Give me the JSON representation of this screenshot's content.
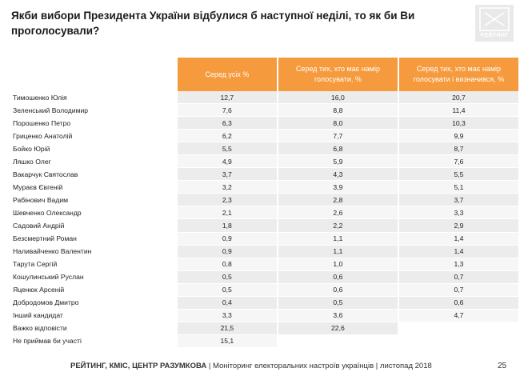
{
  "title": "Якби вибори Президента України відбулися б наступної неділі, то як би Ви проголосували?",
  "logo_text": "РЕЙТИНГ",
  "columns": [
    "Серед усіх %",
    "Серед тих, хто має намір голосувати, %",
    "Серед тих, хто має намір голосувати і визначився, %"
  ],
  "rows": [
    {
      "name": "Тимошенко Юлія",
      "v1": "12,7",
      "v2": "16,0",
      "v3": "20,7"
    },
    {
      "name": "Зеленський Володимир",
      "v1": "7,6",
      "v2": "8,8",
      "v3": "11,4"
    },
    {
      "name": "Порошенко Петро",
      "v1": "6,3",
      "v2": "8,0",
      "v3": "10,3"
    },
    {
      "name": "Гриценко Анатолій",
      "v1": "6,2",
      "v2": "7,7",
      "v3": "9,9"
    },
    {
      "name": "Бойко Юрій",
      "v1": "5,5",
      "v2": "6,8",
      "v3": "8,7"
    },
    {
      "name": "Ляшко Олег",
      "v1": "4,9",
      "v2": "5,9",
      "v3": "7,6"
    },
    {
      "name": "Вакарчук Святослав",
      "v1": "3,7",
      "v2": "4,3",
      "v3": "5,5"
    },
    {
      "name": "Мураєв Євгеній",
      "v1": "3,2",
      "v2": "3,9",
      "v3": "5,1"
    },
    {
      "name": "Рабінович Вадим",
      "v1": "2,3",
      "v2": "2,8",
      "v3": "3,7"
    },
    {
      "name": "Шевченко Олександр",
      "v1": "2,1",
      "v2": "2,6",
      "v3": "3,3"
    },
    {
      "name": "Садовий Андрій",
      "v1": "1,8",
      "v2": "2,2",
      "v3": "2,9"
    },
    {
      "name": "Безсмертний Роман",
      "v1": "0,9",
      "v2": "1,1",
      "v3": "1,4"
    },
    {
      "name": "Наливайченко Валентин",
      "v1": "0,9",
      "v2": "1,1",
      "v3": "1,4"
    },
    {
      "name": "Тарута Сергій",
      "v1": "0,8",
      "v2": "1,0",
      "v3": "1,3"
    },
    {
      "name": "Кошулинський Руслан",
      "v1": "0,5",
      "v2": "0,6",
      "v3": "0,7"
    },
    {
      "name": "Яценюк Арсеній",
      "v1": "0,5",
      "v2": "0,6",
      "v3": "0,7"
    },
    {
      "name": "Добродомов Дмитро",
      "v1": "0,4",
      "v2": "0,5",
      "v3": "0,6"
    },
    {
      "name": "Інший кандидат",
      "v1": "3,3",
      "v2": "3,6",
      "v3": "4,7"
    },
    {
      "name": "Важко відповісти",
      "v1": "21,5",
      "v2": "22,6",
      "v3": ""
    },
    {
      "name": "Не приймав би участі",
      "v1": "15,1",
      "v2": "",
      "v3": ""
    }
  ],
  "footer": {
    "source": "РЕЙТИНГ, КМІС, ЦЕНТР РАЗУМКОВА",
    "separator": " | ",
    "description": "Моніторинг електоральних настроїв українців | листопад 2018"
  },
  "page_number": "25"
}
